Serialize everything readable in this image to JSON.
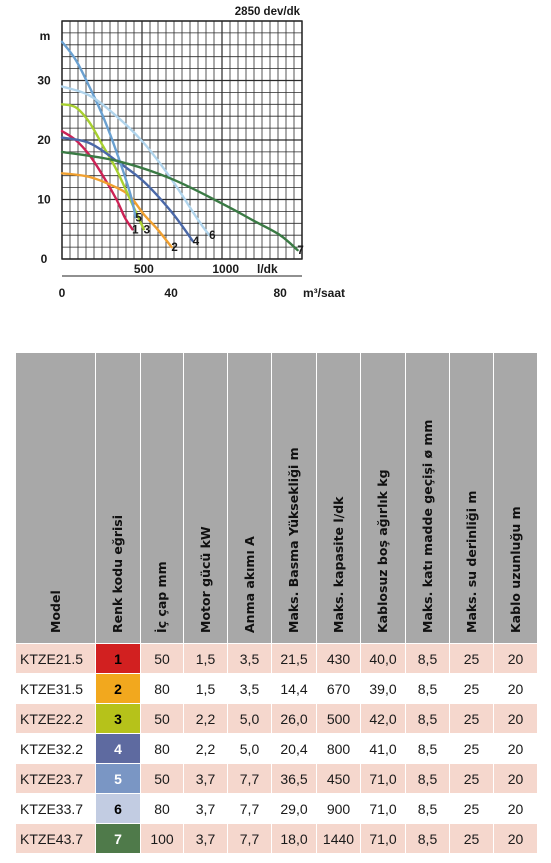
{
  "chart_data": {
    "type": "line",
    "title": "2850 dev/dk",
    "y_axis": {
      "unit": "m",
      "ticks": [
        0,
        10,
        20,
        30
      ],
      "ylim": [
        0,
        40
      ]
    },
    "x_axis_flow_lps": {
      "unit": "l/dk",
      "ticks": [
        500,
        1000
      ],
      "xlim": [
        0,
        1466
      ]
    },
    "x_axis_flow_m3h": {
      "unit": "m³/saat",
      "ticks": [
        0,
        40,
        80
      ],
      "xlim": [
        0,
        88
      ]
    },
    "grid": true,
    "series": [
      {
        "name": "1",
        "color": "#cc2255",
        "x_m3h": [
          0,
          5,
          10,
          15,
          20,
          23,
          25.8
        ],
        "y": [
          21.5,
          20,
          17.5,
          14,
          10,
          7,
          5
        ]
      },
      {
        "name": "2",
        "color": "#f0a030",
        "x_m3h": [
          0,
          10,
          20,
          25,
          30,
          35,
          40.2
        ],
        "y": [
          14.4,
          13.8,
          12,
          10.5,
          7.5,
          5,
          2
        ]
      },
      {
        "name": "3",
        "color": "#a8d030",
        "x_m3h": [
          0,
          5,
          10,
          15,
          20,
          24,
          30
        ],
        "y": [
          26,
          25.5,
          23,
          19,
          15,
          11,
          5
        ]
      },
      {
        "name": "4",
        "color": "#4a68a8",
        "x_m3h": [
          0,
          10,
          20,
          30,
          40,
          48
        ],
        "y": [
          20.4,
          19.5,
          16.5,
          13,
          8,
          3
        ]
      },
      {
        "name": "5",
        "color": "#6aa0d0",
        "x_m3h": [
          0,
          5,
          10,
          15,
          20,
          25,
          27
        ],
        "y": [
          36.5,
          33.5,
          29,
          24,
          18,
          11,
          7
        ]
      },
      {
        "name": "6",
        "color": "#b0d4ec",
        "x_m3h": [
          0,
          10,
          20,
          30,
          40,
          50,
          54
        ],
        "y": [
          29,
          27.5,
          24,
          19.5,
          13.5,
          6.5,
          4
        ]
      },
      {
        "name": "7",
        "color": "#3a7a44",
        "x_m3h": [
          0,
          20,
          40,
          60,
          70,
          80,
          86.4
        ],
        "y": [
          18,
          16.5,
          13.5,
          9,
          6.5,
          4,
          1.5
        ]
      }
    ]
  },
  "table": {
    "headers": [
      "Model",
      "Renk kodu eğrisi",
      "İç çap mm",
      "Motor gücü kW",
      "Anma akımı A",
      "Maks. Basma Yüksekliği m",
      "Maks. kapasite l/dk",
      "Kablosuz boş ağırlık kg",
      "Maks. katı madde geçişi ø mm",
      "Maks. su derinliği m",
      "Kablo uzunluğu m"
    ],
    "rows": [
      {
        "model": "KTZE21.5",
        "code": "1",
        "code_color": "#d22020",
        "ic_cap": "50",
        "motor": "1,5",
        "akim": "3,5",
        "basma": "21,5",
        "kapasite": "430",
        "agirlik": "40,0",
        "kati": "8,5",
        "derinlik": "25",
        "kablo": "20"
      },
      {
        "model": "KTZE31.5",
        "code": "2",
        "code_color": "#f2a81e",
        "ic_cap": "80",
        "motor": "1,5",
        "akim": "3,5",
        "basma": "14,4",
        "kapasite": "670",
        "agirlik": "39,0",
        "kati": "8,5",
        "derinlik": "25",
        "kablo": "20"
      },
      {
        "model": "KTZE22.2",
        "code": "3",
        "code_color": "#b6c21a",
        "ic_cap": "50",
        "motor": "2,2",
        "akim": "5,0",
        "basma": "26,0",
        "kapasite": "500",
        "agirlik": "42,0",
        "kati": "8,5",
        "derinlik": "25",
        "kablo": "20"
      },
      {
        "model": "KTZE32.2",
        "code": "4",
        "code_color": "#5e6aa0",
        "ic_cap": "80",
        "motor": "2,2",
        "akim": "5,0",
        "basma": "20,4",
        "kapasite": "800",
        "agirlik": "41,0",
        "kati": "8,5",
        "derinlik": "25",
        "kablo": "20"
      },
      {
        "model": "KTZE23.7",
        "code": "5",
        "code_color": "#7a96c4",
        "ic_cap": "50",
        "motor": "3,7",
        "akim": "7,7",
        "basma": "36,5",
        "kapasite": "450",
        "agirlik": "71,0",
        "kati": "8,5",
        "derinlik": "25",
        "kablo": "20"
      },
      {
        "model": "KTZE33.7",
        "code": "6",
        "code_color": "#c2cce2",
        "ic_cap": "80",
        "motor": "3,7",
        "akim": "7,7",
        "basma": "29,0",
        "kapasite": "900",
        "agirlik": "71,0",
        "kati": "8,5",
        "derinlik": "25",
        "kablo": "20"
      },
      {
        "model": "KTZE43.7",
        "code": "7",
        "code_color": "#4f7a4a",
        "ic_cap": "100",
        "motor": "3,7",
        "akim": "7,7",
        "basma": "18,0",
        "kapasite": "1440",
        "agirlik": "71,0",
        "kati": "8,5",
        "derinlik": "25",
        "kablo": "20"
      }
    ]
  }
}
